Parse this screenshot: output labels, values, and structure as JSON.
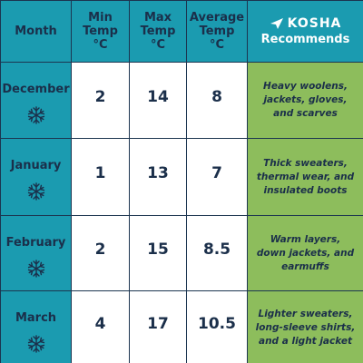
{
  "header": {
    "columns": [
      {
        "lines": [
          "Month"
        ]
      },
      {
        "lines": [
          "Min",
          "Temp",
          "°C"
        ]
      },
      {
        "lines": [
          "Max",
          "Temp",
          "°C"
        ]
      },
      {
        "lines": [
          "Average",
          "Temp",
          "°C"
        ]
      }
    ],
    "brand": "KOSHA",
    "label": "Recommends"
  },
  "table": {
    "rows": [
      {
        "month": "December",
        "min": 2,
        "max": 14,
        "avg": 8,
        "recommendation": "Heavy woolens, jackets, gloves, and scarves"
      },
      {
        "month": "January",
        "min": 1,
        "max": 13,
        "avg": 7,
        "recommendation": "Thick sweaters, thermal wear, and insulated boots"
      },
      {
        "month": "February",
        "min": 2,
        "max": 15,
        "avg": 8.5,
        "recommendation": "Warm layers, down jackets, and earmuffs"
      },
      {
        "month": "March",
        "min": 4,
        "max": 17,
        "avg": 10.5,
        "recommendation": "Lighter sweaters, long-sleeve shirts, and a light jacket"
      }
    ]
  }
}
